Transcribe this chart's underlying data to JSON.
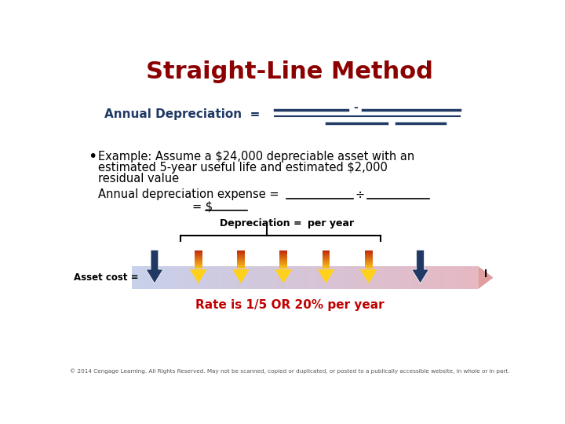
{
  "title": "Straight-Line Method",
  "title_color": "#8B0000",
  "title_fontsize": 22,
  "bg_color": "#FFFFFF",
  "annual_dep_label": "Annual Depreciation  =",
  "annual_dep_color": "#1F3864",
  "bullet_text_line1": "Example: Assume a $24,000 depreciable asset with an",
  "bullet_text_line2": "estimated 5-year useful life and estimated $2,000",
  "bullet_text_line3": "residual value",
  "annual_exp_label": "Annual depreciation expense = ",
  "equals_text": "= $",
  "dep_label": "Depreciation =",
  "per_year_label": "per year",
  "asset_cost_label": "Asset cost =",
  "residual_label": "l",
  "rate_text": "Rate is 1/5 OR 20% per year",
  "rate_color": "#C00000",
  "footer_text": "© 2014 Cengage Learning. All Rights Reserved. May not be scanned, copied or duplicated, or posted to a publically accessible website, in whole or in part.",
  "dark_blue_arrow_color": "#1F3864",
  "line_color": "#1F3864",
  "arrow_fill_left": "#C8D8E8",
  "arrow_fill_right": "#D4A0A0",
  "bracket_color": "#000000",
  "orange_cols": [
    "#C0392B",
    "#C55A11",
    "#D4621A",
    "#E07830",
    "#E89040",
    "#F0A830"
  ]
}
